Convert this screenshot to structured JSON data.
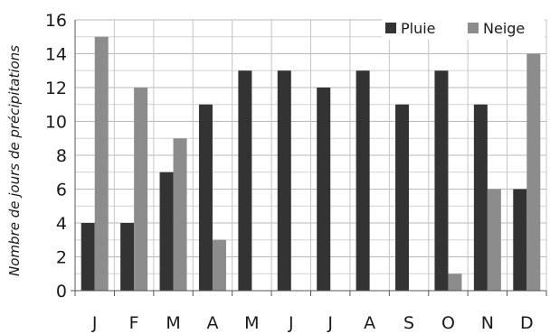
{
  "chart_data": {
    "type": "bar",
    "categories": [
      "J",
      "F",
      "M",
      "A",
      "M",
      "J",
      "J",
      "A",
      "S",
      "O",
      "N",
      "D"
    ],
    "series": [
      {
        "name": "Pluie",
        "values": [
          4,
          4,
          7,
          11,
          13,
          13,
          12,
          13,
          11,
          13,
          11,
          6
        ],
        "color": "#333333"
      },
      {
        "name": "Neige",
        "values": [
          15,
          12,
          9,
          3,
          0,
          0,
          0,
          0,
          0,
          1,
          6,
          14
        ],
        "color": "#8c8c8c"
      }
    ],
    "ylabel": "Nombre de jours de précipitations",
    "xlabel": "",
    "ylim": [
      0,
      16
    ],
    "yticks": [
      0,
      2,
      4,
      6,
      8,
      10,
      12,
      14,
      16
    ],
    "grid": true,
    "legend": "top-right"
  }
}
